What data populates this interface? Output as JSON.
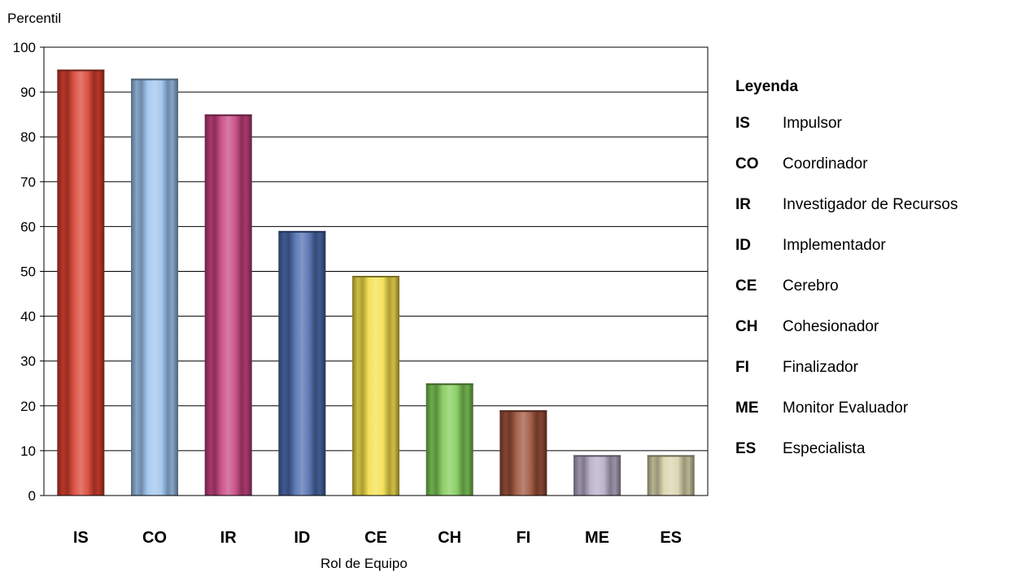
{
  "chart_data": {
    "type": "bar",
    "ylabel": "Percentil",
    "xlabel": "Rol de Equipo",
    "ylim": [
      0,
      100
    ],
    "yticks": [
      0,
      10,
      20,
      30,
      40,
      50,
      60,
      70,
      80,
      90,
      100
    ],
    "grid": true,
    "categories": [
      "IS",
      "CO",
      "IR",
      "ID",
      "CE",
      "CH",
      "FI",
      "ME",
      "ES"
    ],
    "values": [
      95,
      93,
      85,
      59,
      49,
      25,
      19,
      9,
      9
    ],
    "colors": [
      "#d9402f",
      "#9cc3ee",
      "#c6427f",
      "#4a6aac",
      "#f4e04a",
      "#7fcb57",
      "#9b5038",
      "#b5abc6",
      "#d8d4aa"
    ],
    "legend_placement": "right"
  },
  "legend": {
    "title": "Leyenda",
    "items": [
      {
        "code": "IS",
        "label": "Impulsor"
      },
      {
        "code": "CO",
        "label": "Coordinador"
      },
      {
        "code": "IR",
        "label": "Investigador de Recursos"
      },
      {
        "code": "ID",
        "label": "Implementador"
      },
      {
        "code": "CE",
        "label": "Cerebro"
      },
      {
        "code": "CH",
        "label": "Cohesionador"
      },
      {
        "code": "FI",
        "label": "Finalizador"
      },
      {
        "code": "ME",
        "label": "Monitor Evaluador"
      },
      {
        "code": "ES",
        "label": "Especialista"
      }
    ]
  }
}
